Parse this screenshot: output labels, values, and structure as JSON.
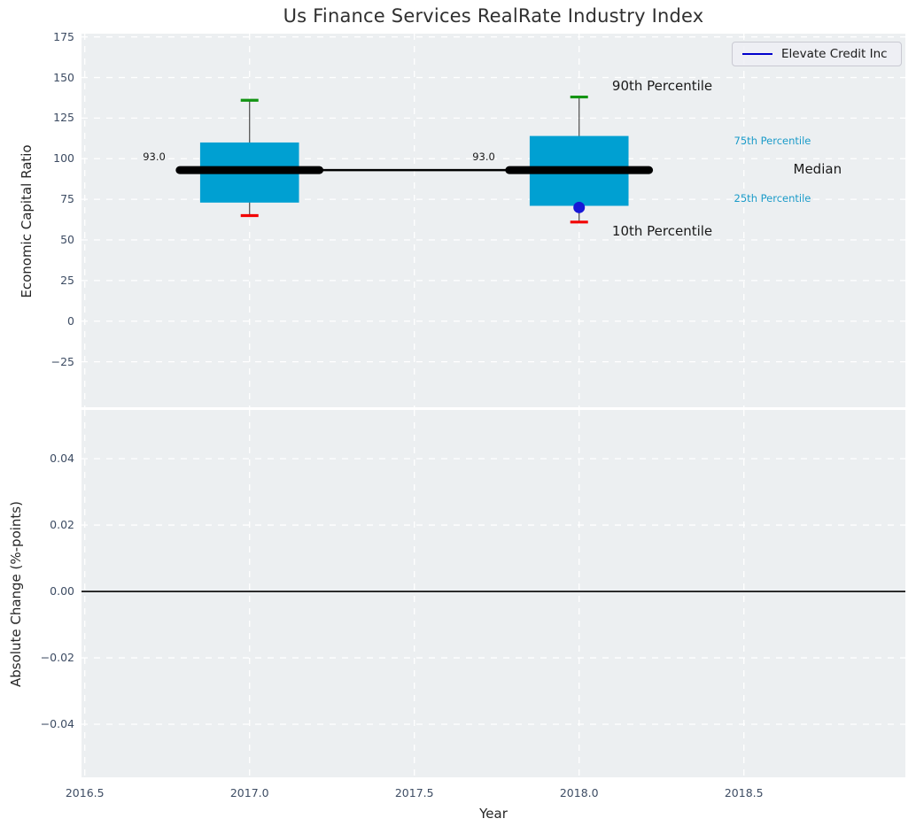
{
  "title": "Us Finance Services RealRate Industry Index",
  "xlabel": "Year",
  "legend": {
    "label": "Elevate Credit Inc"
  },
  "colors": {
    "box_fill": "#00a0d2",
    "cap_top": "#129412",
    "cap_bottom": "#f20000",
    "whisker": "#4a4a4a",
    "median_line": "#000000",
    "company_dot": "#1717d6",
    "legend_line": "#0000cc",
    "plot_bg": "#eceff1",
    "grid": "#ffffff",
    "tick_text": "#3d4c63",
    "text_dark": "#1a1a1a",
    "annotation_blue": "#1b9bc9",
    "zero_line": "#000000"
  },
  "chart_data": [
    {
      "type": "boxplot",
      "title": "Us Finance Services RealRate Industry Index",
      "xlabel": "Year",
      "ylabel": "Economic Capital Ratio",
      "xlim": [
        2016.49,
        2018.99
      ],
      "ylim": [
        -53,
        177
      ],
      "grid": true,
      "yticks": [
        {
          "v": 175,
          "label": "175"
        },
        {
          "v": 150,
          "label": "150"
        },
        {
          "v": 125,
          "label": "125"
        },
        {
          "v": 100,
          "label": "100"
        },
        {
          "v": 75,
          "label": "75"
        },
        {
          "v": 50,
          "label": "50"
        },
        {
          "v": 25,
          "label": "25"
        },
        {
          "v": 0,
          "label": "0"
        },
        {
          "v": -25,
          "label": "−25"
        }
      ],
      "xticks": [
        {
          "v": 2016.5,
          "label": "2016.5"
        },
        {
          "v": 2017.0,
          "label": "2017.0"
        },
        {
          "v": 2017.5,
          "label": "2017.5"
        },
        {
          "v": 2018.0,
          "label": "2018.0"
        },
        {
          "v": 2018.5,
          "label": "2018.5"
        }
      ],
      "box_width": 0.3,
      "median_bar_halfwidth": 0.212,
      "boxes": [
        {
          "x": 2017,
          "p10": 65,
          "p25": 73,
          "median": 93,
          "p75": 110,
          "p90": 136,
          "median_label": "93.0"
        },
        {
          "x": 2018,
          "p10": 61,
          "p25": 71,
          "median": 93,
          "p75": 114,
          "p90": 138,
          "median_label": "93.0"
        }
      ],
      "median_trend": [
        {
          "x": 2017,
          "y": 93
        },
        {
          "x": 2018,
          "y": 93
        }
      ],
      "company_series": {
        "name": "Elevate Credit Inc",
        "points": [
          {
            "x": 2018,
            "y": 70
          }
        ]
      },
      "annotations": [
        {
          "text": "90th Percentile",
          "x": 2018.1,
          "y": 144,
          "size": 15,
          "color": "dark"
        },
        {
          "text": "10th Percentile",
          "x": 2018.1,
          "y": 55,
          "size": 15,
          "color": "dark"
        },
        {
          "text": "75th Percentile",
          "x": 2018.47,
          "y": 110.5,
          "size": 11.5,
          "color": "blue"
        },
        {
          "text": "Median",
          "x": 2018.65,
          "y": 93,
          "size": 15,
          "color": "dark"
        },
        {
          "text": "25th Percentile",
          "x": 2018.47,
          "y": 75,
          "size": 11.5,
          "color": "blue"
        }
      ],
      "legend": {
        "label": "Elevate Credit Inc",
        "position": "upper right"
      }
    },
    {
      "type": "line",
      "xlabel": "Year",
      "ylabel": "Absolute Change (%-points)",
      "xlim": [
        2016.49,
        2018.99
      ],
      "ylim": [
        -0.056,
        0.0547
      ],
      "grid": true,
      "zero_line": 0.0,
      "series": [],
      "yticks": [
        {
          "v": 0.04,
          "label": "0.04"
        },
        {
          "v": 0.02,
          "label": "0.02"
        },
        {
          "v": 0.0,
          "label": "0.00"
        },
        {
          "v": -0.02,
          "label": "−0.02"
        },
        {
          "v": -0.04,
          "label": "−0.04"
        }
      ],
      "xticks": [
        {
          "v": 2016.5,
          "label": "2016.5"
        },
        {
          "v": 2017.0,
          "label": "2017.0"
        },
        {
          "v": 2017.5,
          "label": "2017.5"
        },
        {
          "v": 2018.0,
          "label": "2018.0"
        },
        {
          "v": 2018.5,
          "label": "2018.5"
        }
      ]
    }
  ]
}
